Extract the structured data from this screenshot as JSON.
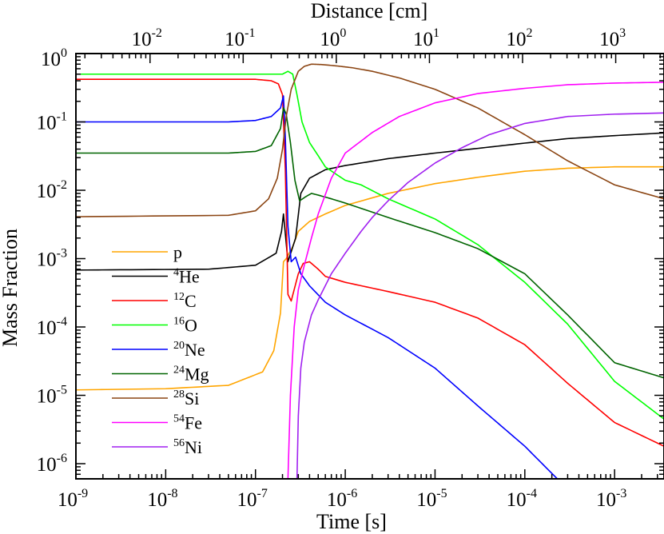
{
  "chart_data": {
    "type": "line",
    "xlabel": "Time [s]",
    "x2label": "Distance [cm]",
    "ylabel": "Mass Fraction",
    "xscale": "log",
    "yscale": "log",
    "xlim": [
      1e-09,
      0.00355
    ],
    "ylim": [
      6e-07,
      1.0
    ],
    "x2lim": [
      0.0016,
      3300
    ],
    "grid": false,
    "legend_position": "left",
    "x_ticks": [
      {
        "base": "10",
        "exp": "-9",
        "value": 1e-09
      },
      {
        "base": "10",
        "exp": "-8",
        "value": 1e-08
      },
      {
        "base": "10",
        "exp": "-7",
        "value": 1e-07
      },
      {
        "base": "10",
        "exp": "-6",
        "value": 1e-06
      },
      {
        "base": "10",
        "exp": "-5",
        "value": 1e-05
      },
      {
        "base": "10",
        "exp": "-4",
        "value": 0.0001
      },
      {
        "base": "10",
        "exp": "-3",
        "value": 0.001
      }
    ],
    "x2_ticks": [
      {
        "base": "10",
        "exp": "-2",
        "value": 0.01
      },
      {
        "base": "10",
        "exp": "-1",
        "value": 0.1
      },
      {
        "base": "10",
        "exp": "0",
        "value": 1
      },
      {
        "base": "10",
        "exp": "1",
        "value": 10
      },
      {
        "base": "10",
        "exp": "2",
        "value": 100
      },
      {
        "base": "10",
        "exp": "3",
        "value": 1000
      }
    ],
    "y_ticks": [
      {
        "base": "10",
        "exp": "0",
        "value": 1
      },
      {
        "base": "10",
        "exp": "-1",
        "value": 0.1
      },
      {
        "base": "10",
        "exp": "-2",
        "value": 0.01
      },
      {
        "base": "10",
        "exp": "-3",
        "value": 0.001
      },
      {
        "base": "10",
        "exp": "-4",
        "value": 0.0001
      },
      {
        "base": "10",
        "exp": "-5",
        "value": 1e-05
      },
      {
        "base": "10",
        "exp": "-6",
        "value": 1e-06
      }
    ],
    "series": [
      {
        "name": "p",
        "sup": "",
        "main": "p",
        "color": "#ffa500",
        "x": [
          1e-09,
          1e-08,
          5e-08,
          1.2e-07,
          1.6e-07,
          1.9e-07,
          2.05e-07,
          2.2e-07,
          2.6e-07,
          3e-07,
          4e-07,
          6e-07,
          1e-06,
          3e-06,
          1e-05,
          3e-05,
          0.0001,
          0.0003,
          0.001,
          0.00355
        ],
        "y": [
          1.2e-05,
          1.25e-05,
          1.4e-05,
          2.2e-05,
          4.5e-05,
          0.00016,
          0.0009,
          0.001,
          0.0015,
          0.0025,
          0.0035,
          0.0045,
          0.006,
          0.009,
          0.0125,
          0.0155,
          0.019,
          0.021,
          0.022,
          0.022
        ]
      },
      {
        "name": "4He",
        "sup": "4",
        "main": "He",
        "color": "#000000",
        "x": [
          1e-09,
          3e-08,
          1e-07,
          1.7e-07,
          1.95e-07,
          2.05e-07,
          2.3e-07,
          2.8e-07,
          3.2e-07,
          4e-07,
          6e-07,
          1e-06,
          3e-06,
          1e-05,
          3e-05,
          0.0001,
          0.0003,
          0.001,
          0.00355
        ],
        "y": [
          0.00068,
          0.0007,
          0.0008,
          0.0012,
          0.0025,
          0.0045,
          0.0009,
          0.002,
          0.009,
          0.015,
          0.02,
          0.023,
          0.029,
          0.035,
          0.041,
          0.049,
          0.057,
          0.063,
          0.069
        ]
      },
      {
        "name": "12C",
        "sup": "12",
        "main": "C",
        "color": "#ff0000",
        "x": [
          1e-09,
          5e-08,
          1e-07,
          1.5e-07,
          1.8e-07,
          2e-07,
          2.15e-07,
          2.3e-07,
          2.5e-07,
          3e-07,
          3.4e-07,
          4e-07,
          5e-07,
          6e-07,
          1e-06,
          3e-06,
          1e-05,
          3e-05,
          0.0001,
          0.0003,
          0.001,
          0.00355
        ],
        "y": [
          0.42,
          0.42,
          0.42,
          0.4,
          0.36,
          0.25,
          0.02,
          0.0003,
          0.00024,
          0.0006,
          0.00085,
          0.0009,
          0.0007,
          0.00055,
          0.00045,
          0.00033,
          0.00023,
          0.000135,
          5.5e-05,
          1.5e-05,
          4e-06,
          1.8e-06
        ]
      },
      {
        "name": "16O",
        "sup": "16",
        "main": "O",
        "color": "#00ff00",
        "x": [
          1e-09,
          5e-08,
          1.5e-07,
          2e-07,
          2.3e-07,
          2.6e-07,
          2.9e-07,
          3.3e-07,
          4e-07,
          5e-07,
          6e-07,
          8e-07,
          1e-06,
          1.5e-06,
          3e-06,
          1e-05,
          3e-05,
          0.0001,
          0.0003,
          0.001,
          0.00355
        ],
        "y": [
          0.5,
          0.5,
          0.5,
          0.5,
          0.55,
          0.5,
          0.25,
          0.1,
          0.05,
          0.032,
          0.022,
          0.017,
          0.014,
          0.012,
          0.0075,
          0.0038,
          0.0016,
          0.00045,
          0.00011,
          1.6e-05,
          4.5e-06
        ]
      },
      {
        "name": "20Ne",
        "sup": "20",
        "main": "Ne",
        "color": "#0000ff",
        "x": [
          1e-09,
          5e-08,
          1e-07,
          1.5e-07,
          1.9e-07,
          2.05e-07,
          2.15e-07,
          2.3e-07,
          2.5e-07,
          2.8e-07,
          3.2e-07,
          4e-07,
          6e-07,
          1e-06,
          3e-06,
          1e-05,
          3e-05,
          0.0001,
          0.00023
        ],
        "y": [
          0.1,
          0.1,
          0.105,
          0.12,
          0.16,
          0.24,
          0.06,
          0.003,
          0.0009,
          0.00105,
          0.0006,
          0.0004,
          0.00023,
          0.00015,
          7e-05,
          2.5e-05,
          7e-06,
          1.8e-06,
          6e-07
        ]
      },
      {
        "name": "24Mg",
        "sup": "24",
        "main": "Mg",
        "color": "#006400",
        "x": [
          1e-09,
          5e-08,
          1e-07,
          1.5e-07,
          1.9e-07,
          2.05e-07,
          2.2e-07,
          2.45e-07,
          2.75e-07,
          3.1e-07,
          3.6e-07,
          4.2e-07,
          5e-07,
          7e-07,
          1e-06,
          3e-06,
          1e-05,
          3e-05,
          0.0001,
          0.0003,
          0.001,
          0.00355
        ],
        "y": [
          0.035,
          0.035,
          0.037,
          0.045,
          0.08,
          0.16,
          0.13,
          0.05,
          0.014,
          0.007,
          0.008,
          0.009,
          0.0085,
          0.0075,
          0.0065,
          0.004,
          0.0024,
          0.0014,
          0.0006,
          0.00015,
          3e-05,
          1.8e-05
        ]
      },
      {
        "name": "28Si",
        "sup": "28",
        "main": "Si",
        "color": "#8b4513",
        "x": [
          1e-09,
          5e-08,
          1e-07,
          1.4e-07,
          1.75e-07,
          2e-07,
          2.2e-07,
          2.5e-07,
          3e-07,
          3.5e-07,
          4.2e-07,
          5.5e-07,
          8e-07,
          1.2e-06,
          2e-06,
          4e-06,
          1e-05,
          3e-05,
          0.0001,
          0.0003,
          0.001,
          0.00355
        ],
        "y": [
          0.0041,
          0.0043,
          0.005,
          0.0075,
          0.015,
          0.04,
          0.12,
          0.3,
          0.55,
          0.65,
          0.7,
          0.69,
          0.66,
          0.62,
          0.55,
          0.44,
          0.3,
          0.16,
          0.065,
          0.027,
          0.012,
          0.0075
        ]
      },
      {
        "name": "54Fe",
        "sup": "54",
        "main": "Fe",
        "color": "#ff00ff",
        "x": [
          2.3e-07,
          2.45e-07,
          2.7e-07,
          3e-07,
          3.5e-07,
          4.2e-07,
          5e-07,
          7e-07,
          1e-06,
          2e-06,
          4e-06,
          1e-05,
          3e-05,
          0.0001,
          0.0003,
          0.001,
          0.00355
        ],
        "y": [
          6e-07,
          1e-05,
          0.0001,
          0.00035,
          0.0008,
          0.002,
          0.0045,
          0.015,
          0.035,
          0.07,
          0.12,
          0.19,
          0.26,
          0.31,
          0.35,
          0.37,
          0.38
        ]
      },
      {
        "name": "56Ni",
        "sup": "56",
        "main": "Ni",
        "color": "#a020f0",
        "x": [
          2.9e-07,
          3e-07,
          3.2e-07,
          3.5e-07,
          4.2e-07,
          5e-07,
          7e-07,
          1e-06,
          1.5e-06,
          2e-06,
          3e-06,
          5e-06,
          1e-05,
          2e-05,
          4e-05,
          0.0001,
          0.0003,
          0.001,
          0.00355
        ],
        "y": [
          6e-07,
          5e-06,
          2.5e-05,
          6e-05,
          0.00015,
          0.00025,
          0.0006,
          0.0012,
          0.0025,
          0.004,
          0.007,
          0.013,
          0.025,
          0.042,
          0.065,
          0.095,
          0.12,
          0.13,
          0.135
        ]
      }
    ]
  }
}
